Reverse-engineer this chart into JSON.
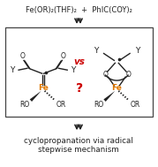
{
  "bg_color": "#ffffff",
  "title_text": "Fe(OR)₂(THF)₂  +  PhIC(COY)₂",
  "bottom_text_line1": "cyclopropanation via radical",
  "bottom_text_line2": "stepwise mechanism",
  "fe_color": "#e07800",
  "red_color": "#cc0000",
  "black_color": "#222222",
  "box_color": "#444444",
  "figsize": [
    1.79,
    1.89
  ],
  "dpi": 100
}
